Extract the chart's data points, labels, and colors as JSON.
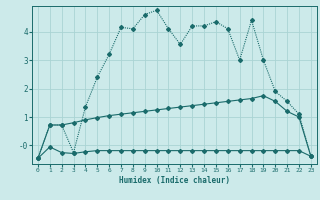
{
  "xlabel": "Humidex (Indice chaleur)",
  "background_color": "#cceaea",
  "grid_color": "#aad4d4",
  "line_color": "#1a6b6b",
  "xlim": [
    -0.5,
    23.5
  ],
  "ylim": [
    -0.65,
    4.9
  ],
  "xticks": [
    0,
    1,
    2,
    3,
    4,
    5,
    6,
    7,
    8,
    9,
    10,
    11,
    12,
    13,
    14,
    15,
    16,
    17,
    18,
    19,
    20,
    21,
    22,
    23
  ],
  "yticks": [
    0,
    1,
    2,
    3,
    4
  ],
  "ytick_labels": [
    "-0",
    "1",
    "2",
    "3",
    "4"
  ],
  "line1_x": [
    0,
    1,
    2,
    3,
    4,
    5,
    6,
    7,
    8,
    9,
    10,
    11,
    12,
    13,
    14,
    15,
    16,
    17,
    18,
    19,
    20,
    21,
    22,
    23
  ],
  "line1_y": [
    -0.45,
    -0.05,
    -0.25,
    -0.28,
    -0.22,
    -0.18,
    -0.18,
    -0.18,
    -0.18,
    -0.18,
    -0.18,
    -0.18,
    -0.18,
    -0.18,
    -0.18,
    -0.18,
    -0.18,
    -0.18,
    -0.18,
    -0.18,
    -0.18,
    -0.18,
    -0.18,
    -0.38
  ],
  "line2_x": [
    0,
    1,
    2,
    3,
    4,
    5,
    6,
    7,
    8,
    9,
    10,
    11,
    12,
    13,
    14,
    15,
    16,
    17,
    18,
    19,
    20,
    21,
    22,
    23
  ],
  "line2_y": [
    -0.45,
    0.72,
    0.72,
    0.8,
    0.9,
    0.98,
    1.05,
    1.1,
    1.15,
    1.2,
    1.25,
    1.3,
    1.35,
    1.4,
    1.45,
    1.5,
    1.55,
    1.6,
    1.65,
    1.75,
    1.55,
    1.2,
    1.0,
    -0.38
  ],
  "line3_x": [
    0,
    1,
    2,
    3,
    4,
    5,
    6,
    7,
    8,
    9,
    10,
    11,
    12,
    13,
    14,
    15,
    16,
    17,
    18,
    19,
    20,
    21,
    22,
    23
  ],
  "line3_y": [
    -0.45,
    0.72,
    0.72,
    -0.25,
    1.35,
    2.4,
    3.2,
    4.15,
    4.1,
    4.6,
    4.75,
    4.1,
    3.55,
    4.2,
    4.2,
    4.35,
    4.1,
    3.0,
    4.4,
    3.0,
    1.9,
    1.55,
    1.1,
    -0.38
  ]
}
